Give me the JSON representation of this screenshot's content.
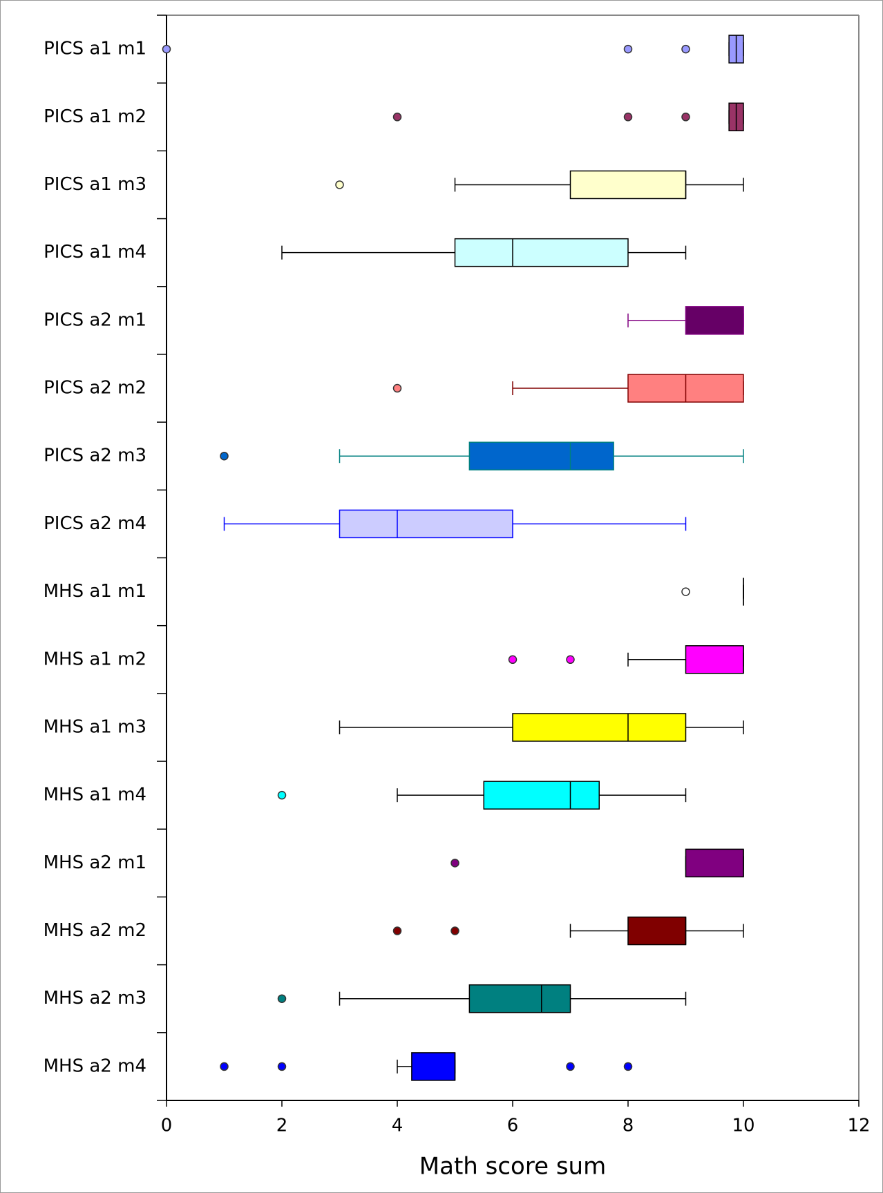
{
  "chart_data": {
    "type": "boxplot",
    "orientation": "horizontal",
    "xlabel": "Math score sum",
    "xlim": [
      0,
      12
    ],
    "xticks": [
      0,
      2,
      4,
      6,
      8,
      10,
      12
    ],
    "series": [
      {
        "name": "PICS a1 m1",
        "color": "#9999ff",
        "line_color": "#000000",
        "whislo": 9.75,
        "q1": 9.75,
        "median": 9.875,
        "q3": 10,
        "whishi": 10,
        "fliers": [
          0,
          8,
          9
        ]
      },
      {
        "name": "PICS a1 m2",
        "color": "#993366",
        "line_color": "#000000",
        "whislo": 9.75,
        "q1": 9.75,
        "median": 9.875,
        "q3": 10,
        "whishi": 10,
        "fliers": [
          4,
          8,
          9
        ]
      },
      {
        "name": "PICS a1 m3",
        "color": "#ffffcc",
        "line_color": "#000000",
        "whislo": 5,
        "q1": 7,
        "median": 9,
        "q3": 9,
        "whishi": 10,
        "fliers": [
          3
        ]
      },
      {
        "name": "PICS a1 m4",
        "color": "#ccffff",
        "line_color": "#000000",
        "whislo": 2,
        "q1": 5,
        "median": 6,
        "q3": 8,
        "whishi": 9,
        "fliers": []
      },
      {
        "name": "PICS a2 m1",
        "color": "#660066",
        "line_color": "#800080",
        "whislo": 8,
        "q1": 9,
        "median": 10,
        "q3": 10,
        "whishi": 10,
        "fliers": []
      },
      {
        "name": "PICS a2 m2",
        "color": "#ff8080",
        "line_color": "#800000",
        "whislo": 6,
        "q1": 8,
        "median": 9,
        "q3": 10,
        "whishi": 10,
        "fliers": [
          4
        ]
      },
      {
        "name": "PICS a2 m3",
        "color": "#0066cc",
        "line_color": "#008080",
        "whislo": 3,
        "q1": 5.25,
        "median": 7,
        "q3": 7.75,
        "whishi": 10,
        "fliers": [
          1
        ]
      },
      {
        "name": "PICS a2 m4",
        "color": "#ccccff",
        "line_color": "#0000ff",
        "whislo": 1,
        "q1": 3,
        "median": 4,
        "q3": 6,
        "whishi": 9,
        "fliers": []
      },
      {
        "name": "MHS a1 m1",
        "color": "#ffffff",
        "line_color": "#000000",
        "whislo": 10,
        "q1": 10,
        "median": 10,
        "q3": 10,
        "whishi": 10,
        "fliers": [
          9
        ]
      },
      {
        "name": "MHS a1 m2",
        "color": "#ff00ff",
        "line_color": "#000000",
        "whislo": 8,
        "q1": 9,
        "median": 10,
        "q3": 10,
        "whishi": 10,
        "fliers": [
          6,
          7
        ]
      },
      {
        "name": "MHS a1 m3",
        "color": "#ffff00",
        "line_color": "#000000",
        "whislo": 3,
        "q1": 6,
        "median": 8,
        "q3": 9,
        "whishi": 10,
        "fliers": []
      },
      {
        "name": "MHS a1 m4",
        "color": "#00ffff",
        "line_color": "#000000",
        "whislo": 4,
        "q1": 5.5,
        "median": 7,
        "q3": 7.5,
        "whishi": 9,
        "fliers": [
          2
        ]
      },
      {
        "name": "MHS a2 m1",
        "color": "#800080",
        "line_color": "#000000",
        "whislo": 9,
        "q1": 9,
        "median": 10,
        "q3": 10,
        "whishi": 10,
        "fliers": [
          5
        ]
      },
      {
        "name": "MHS a2 m2",
        "color": "#800000",
        "line_color": "#000000",
        "whislo": 7,
        "q1": 8,
        "median": 9,
        "q3": 9,
        "whishi": 10,
        "fliers": [
          4,
          5
        ]
      },
      {
        "name": "MHS a2 m3",
        "color": "#008080",
        "line_color": "#000000",
        "whislo": 3,
        "q1": 5.25,
        "median": 6.5,
        "q3": 7,
        "whishi": 9,
        "fliers": [
          2
        ]
      },
      {
        "name": "MHS a2 m4",
        "color": "#0000ff",
        "line_color": "#000000",
        "whislo": 4,
        "q1": 4.25,
        "median": 5,
        "q3": 5,
        "whishi": 5,
        "fliers": [
          1,
          2,
          7,
          8
        ]
      }
    ]
  }
}
